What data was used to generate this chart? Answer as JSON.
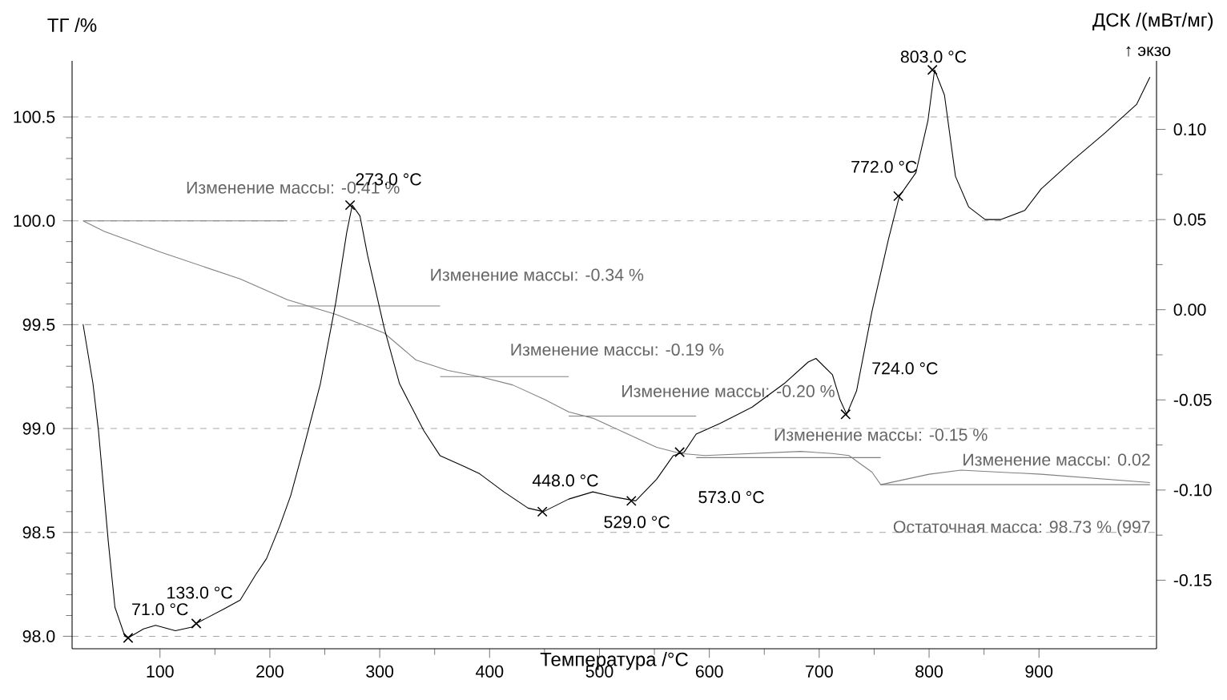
{
  "chart_data": {
    "type": "line",
    "xlabel": "Температура /°C",
    "ylabel": "ТГ /%",
    "y2label": "ДСК /(мВт/мг)",
    "xlim": [
      20,
      1007
    ],
    "ylim": [
      97.94,
      100.77
    ],
    "y2lim": [
      -0.188,
      0.138
    ],
    "xticks": [
      100,
      200,
      300,
      400,
      500,
      600,
      700,
      800,
      900
    ],
    "yticks": [
      {
        "value": 98.0,
        "label": "98.0"
      },
      {
        "value": 98.5,
        "label": "98.5"
      },
      {
        "value": 99.0,
        "label": "99.0"
      },
      {
        "value": 99.5,
        "label": "99.5"
      },
      {
        "value": 100.0,
        "label": "100.0"
      },
      {
        "value": 100.5,
        "label": "100.5"
      }
    ],
    "y2ticks": [
      {
        "value": -0.15,
        "label": "-0.15"
      },
      {
        "value": -0.1,
        "label": "-0.10"
      },
      {
        "value": -0.05,
        "label": "-0.05"
      },
      {
        "value": 0.0,
        "label": "0.00"
      },
      {
        "value": 0.05,
        "label": "0.05"
      },
      {
        "value": 0.1,
        "label": "0.10"
      }
    ],
    "grid": "y",
    "series": [
      {
        "color": "#808080",
        "marker": "none",
        "x": [
          30,
          49,
          100,
          173,
          216,
          260,
          304,
          333,
          362,
          391,
          421,
          450,
          472,
          494,
          523,
          552,
          574,
          596,
          683,
          712,
          727,
          748,
          756,
          800,
          829,
          902,
          1001
        ],
        "values": [
          100.0,
          99.95,
          99.85,
          99.72,
          99.62,
          99.55,
          99.46,
          99.33,
          99.28,
          99.25,
          99.21,
          99.14,
          99.08,
          99.05,
          98.98,
          98.91,
          98.88,
          98.87,
          98.89,
          98.88,
          98.87,
          98.79,
          98.73,
          98.78,
          98.8,
          98.78,
          98.74
        ]
      },
      {
        "color": "#808080",
        "marker": "none",
        "x": [
          30,
          216
        ],
        "values": [
          100.0,
          100.0
        ]
      },
      {
        "color": "#808080",
        "marker": "none",
        "x": [
          216,
          355
        ],
        "values": [
          99.59,
          99.59
        ]
      },
      {
        "color": "#808080",
        "marker": "none",
        "x": [
          355,
          472
        ],
        "values": [
          99.25,
          99.25
        ]
      },
      {
        "color": "#808080",
        "marker": "none",
        "x": [
          472,
          588
        ],
        "values": [
          99.06,
          99.06
        ]
      },
      {
        "color": "#808080",
        "marker": "none",
        "x": [
          588,
          756
        ],
        "values": [
          98.86,
          98.86
        ]
      },
      {
        "color": "#808080",
        "marker": "none",
        "x": [
          756,
          1001
        ],
        "values": [
          98.73,
          98.73
        ]
      },
      {
        "color": "#000000",
        "marker": "none",
        "axis": "y2",
        "x": [
          30,
          39,
          44,
          53,
          59,
          68,
          71,
          85,
          96,
          114,
          129,
          133,
          158,
          173,
          187,
          197,
          209,
          219,
          231,
          246,
          260,
          270,
          275,
          282,
          289,
          304,
          318,
          340,
          355,
          377,
          391,
          413,
          435,
          449,
          472,
          494,
          515,
          533,
          552,
          567,
          577,
          588,
          610,
          639,
          668,
          690,
          697,
          712,
          719,
          725,
          734,
          748,
          763,
          773,
          788,
          799,
          805,
          814,
          824,
          836,
          851,
          865,
          887,
          902,
          931,
          960,
          989,
          1001
        ],
        "values": [
          -0.008,
          -0.041,
          -0.067,
          -0.129,
          -0.165,
          -0.181,
          -0.182,
          -0.177,
          -0.175,
          -0.178,
          -0.176,
          -0.174,
          -0.166,
          -0.161,
          -0.147,
          -0.138,
          -0.12,
          -0.103,
          -0.076,
          -0.041,
          0.004,
          0.043,
          0.058,
          0.052,
          0.03,
          -0.01,
          -0.041,
          -0.067,
          -0.081,
          -0.087,
          -0.091,
          -0.101,
          -0.11,
          -0.112,
          -0.105,
          -0.101,
          -0.104,
          -0.106,
          -0.094,
          -0.081,
          -0.079,
          -0.069,
          -0.063,
          -0.054,
          -0.041,
          -0.029,
          -0.027,
          -0.036,
          -0.05,
          -0.058,
          -0.045,
          -0.001,
          0.039,
          0.063,
          0.076,
          0.105,
          0.133,
          0.119,
          0.074,
          0.057,
          0.05,
          0.05,
          0.055,
          0.067,
          0.083,
          0.098,
          0.114,
          0.129
        ]
      },
      {
        "type": "scatter",
        "color": "#000000",
        "marker": "cross",
        "axis": "y2",
        "x": [
          71,
          133,
          273,
          448,
          529,
          573,
          724,
          772,
          803
        ],
        "values": [
          -0.182,
          -0.174,
          0.058,
          -0.112,
          -0.106,
          -0.079,
          -0.058,
          0.063,
          0.133
        ]
      }
    ],
    "annotations": [
      "Изменение массы: -0.41 %",
      "Изменение массы: -0.34 %",
      "Изменение массы: -0.19 %",
      "Изменение массы: -0.20 %",
      "Изменение массы: -0.15 %",
      "Изменение массы: 0.02",
      "Остаточная масса: 98.73 % (997",
      "71.0 °C",
      "133.0 °C",
      "273.0 °C",
      "448.0 °C",
      "529.0 °C",
      "573.0 °C",
      "724.0 °C",
      "772.0 °C",
      "803.0 °C",
      "↑ экзо"
    ]
  }
}
